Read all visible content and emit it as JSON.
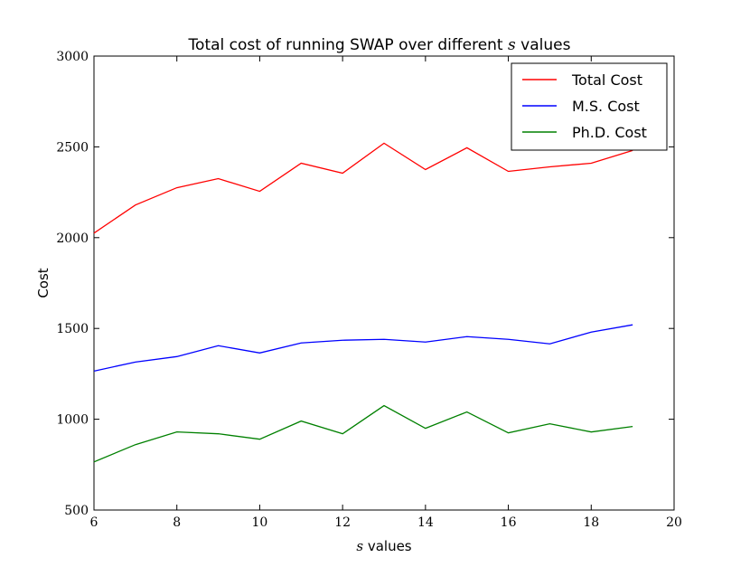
{
  "chart_data": {
    "type": "line",
    "title_prefix": "Total cost of running SWAP over different ",
    "title_var": "s",
    "title_suffix": " values",
    "xlabel_var": "s",
    "xlabel_suffix": " values",
    "ylabel": "Cost",
    "xlim": [
      6,
      20
    ],
    "ylim": [
      500,
      3000
    ],
    "xticks": [
      6,
      8,
      10,
      12,
      14,
      16,
      18,
      20
    ],
    "yticks": [
      500,
      1000,
      1500,
      2000,
      2500,
      3000
    ],
    "legend_position": "top-right",
    "grid": false,
    "x": [
      6,
      7,
      8,
      9,
      10,
      11,
      12,
      13,
      14,
      15,
      16,
      17,
      18,
      19
    ],
    "series": [
      {
        "name": "Total Cost",
        "color": "#ff0000",
        "values": [
          2025,
          2180,
          2275,
          2325,
          2255,
          2410,
          2355,
          2520,
          2375,
          2495,
          2365,
          2390,
          2410,
          2480
        ]
      },
      {
        "name": "M.S. Cost",
        "color": "#0000ff",
        "values": [
          1265,
          1315,
          1345,
          1405,
          1365,
          1420,
          1435,
          1440,
          1425,
          1455,
          1440,
          1415,
          1480,
          1520
        ]
      },
      {
        "name": "Ph.D. Cost",
        "color": "#008000",
        "values": [
          765,
          860,
          930,
          920,
          890,
          990,
          920,
          1075,
          950,
          1040,
          925,
          975,
          930,
          960
        ]
      }
    ]
  }
}
